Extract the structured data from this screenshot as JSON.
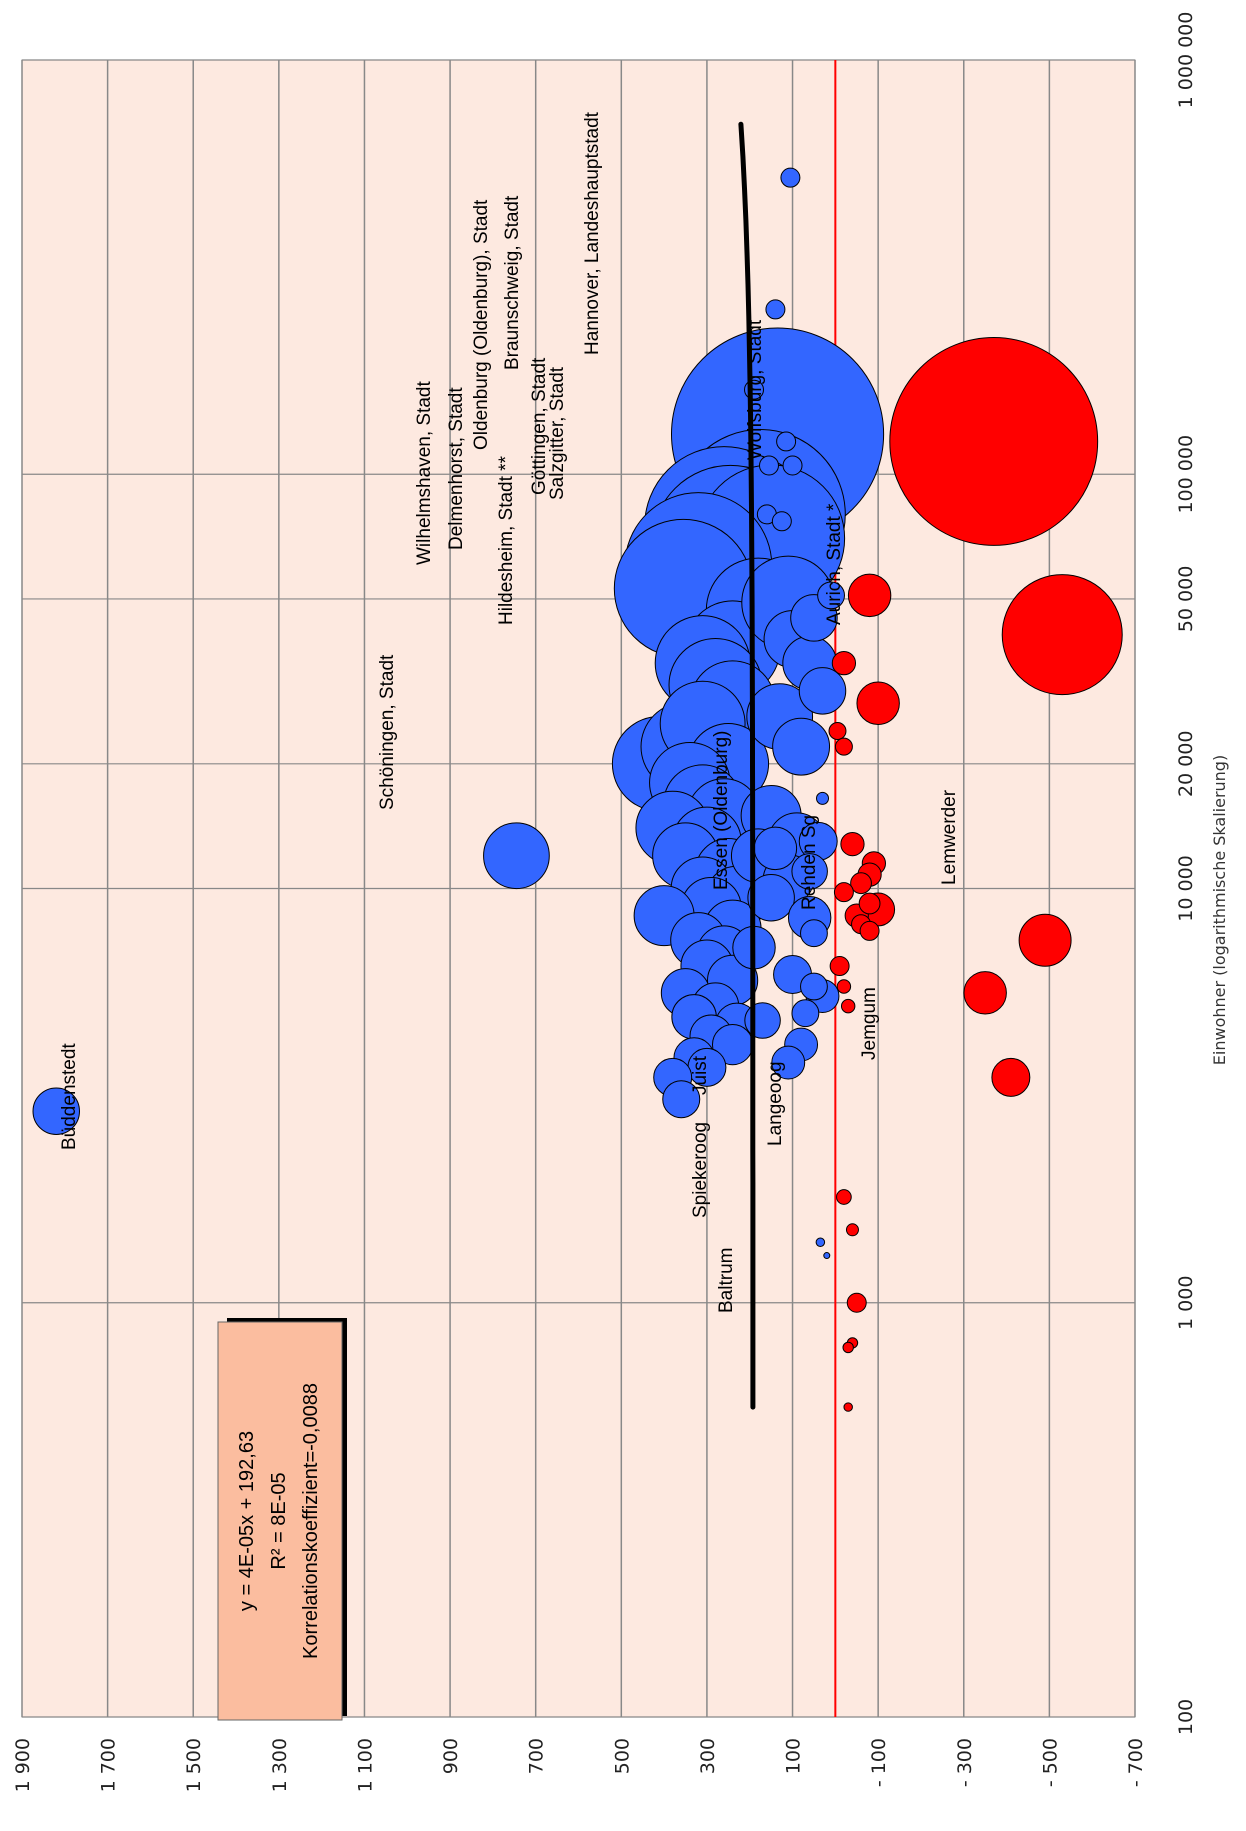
{
  "chart_data": {
    "type": "scatter",
    "subtype": "bubble",
    "orientation": "rotated-90-ccw",
    "xlabel": "Einwohner (logarithmische Skalierung)",
    "ylabel": "",
    "x_scale": "log",
    "xlim": [
      100,
      1000000
    ],
    "x_ticks": [
      100,
      1000,
      10000,
      20000,
      50000,
      100000,
      1000000
    ],
    "x_tick_labels": [
      "100",
      "1 000",
      "10 000",
      "20 000",
      "50 000",
      "100 000",
      "1 000 000"
    ],
    "ylim": [
      -700,
      1900
    ],
    "y_ticks": [
      -700,
      -500,
      -300,
      -100,
      100,
      300,
      500,
      700,
      900,
      1100,
      1300,
      1500,
      1700,
      1900
    ],
    "y_tick_labels": [
      "- 700",
      "- 500",
      "- 300",
      "- 100",
      "100",
      "300",
      "500",
      "700",
      "900",
      "1 100",
      "1 300",
      "1 500",
      "1 700",
      "1 900"
    ],
    "grid": true,
    "reference_line": {
      "y": 0,
      "color": "#ff0000"
    },
    "colors": {
      "plot_background": "#fde9e0",
      "positive": "#3366ff",
      "negative": "#ff0000",
      "trendline": "#000000",
      "equation_box": "#fbbd9f"
    },
    "trendline": {
      "type": "linear",
      "x_range": [
        560,
        700000
      ],
      "slope": 4e-05,
      "intercept": 192.63
    },
    "equation_box": {
      "lines": [
        "y = 4E-05x + 192,63",
        "R² = 8E-05",
        "Korrelationskoeffizient=-0,0088"
      ]
    },
    "points": [
      {
        "x": 125000,
        "y": 135,
        "size": 125000
      },
      {
        "x": 80000,
        "y": 175,
        "size": 80000
      },
      {
        "x": 72000,
        "y": 225,
        "size": 72000
      },
      {
        "x": 68000,
        "y": 245,
        "size": 68000
      },
      {
        "x": 75000,
        "y": 260,
        "size": 70000
      },
      {
        "x": 70000,
        "y": 150,
        "size": 60000
      },
      {
        "x": 60000,
        "y": 320,
        "size": 60000
      },
      {
        "x": 53000,
        "y": 355,
        "size": 53000
      },
      {
        "x": 47000,
        "y": 180,
        "size": 30000
      },
      {
        "x": 38000,
        "y": 240,
        "size": 25000
      },
      {
        "x": 35000,
        "y": 310,
        "size": 25000
      },
      {
        "x": 31000,
        "y": 280,
        "size": 24000
      },
      {
        "x": 28000,
        "y": 240,
        "size": 20000
      },
      {
        "x": 25000,
        "y": 310,
        "size": 20000
      },
      {
        "x": 22000,
        "y": 350,
        "size": 22000
      },
      {
        "x": 20000,
        "y": 410,
        "size": 25000
      },
      {
        "x": 20000,
        "y": 250,
        "size": 18000
      },
      {
        "x": 18000,
        "y": 340,
        "size": 18000
      },
      {
        "x": 16000,
        "y": 310,
        "size": 17000
      },
      {
        "x": 15000,
        "y": 260,
        "size": 15000
      },
      {
        "x": 14000,
        "y": 380,
        "size": 15000
      },
      {
        "x": 13000,
        "y": 300,
        "size": 13000
      },
      {
        "x": 12000,
        "y": 350,
        "size": 12000
      },
      {
        "x": 11000,
        "y": 250,
        "size": 12000
      },
      {
        "x": 10000,
        "y": 310,
        "size": 11000
      },
      {
        "x": 9500,
        "y": 230,
        "size": 11000
      },
      {
        "x": 9000,
        "y": 290,
        "size": 10000
      },
      {
        "x": 8600,
        "y": 400,
        "size": 10000
      },
      {
        "x": 8000,
        "y": 240,
        "size": 9000
      },
      {
        "x": 7500,
        "y": 320,
        "size": 8500
      },
      {
        "x": 7000,
        "y": 260,
        "size": 8000
      },
      {
        "x": 6500,
        "y": 300,
        "size": 7500
      },
      {
        "x": 6000,
        "y": 240,
        "size": 7000
      },
      {
        "x": 5600,
        "y": 350,
        "size": 6500
      },
      {
        "x": 5200,
        "y": 280,
        "size": 6000
      },
      {
        "x": 4900,
        "y": 330,
        "size": 5500
      },
      {
        "x": 4700,
        "y": 230,
        "size": 5000
      },
      {
        "x": 4400,
        "y": 290,
        "size": 5000
      },
      {
        "x": 4200,
        "y": 240,
        "size": 4500
      },
      {
        "x": 3900,
        "y": 330,
        "size": 4500
      },
      {
        "x": 3700,
        "y": 300,
        "size": 4000
      },
      {
        "x": 3500,
        "y": 380,
        "size": 4000
      },
      {
        "x": 3100,
        "y": 360,
        "size": 3800
      },
      {
        "x": 15000,
        "y": 150,
        "size": 10000
      },
      {
        "x": 13000,
        "y": 90,
        "size": 9000
      },
      {
        "x": 12000,
        "y": 180,
        "size": 8000
      },
      {
        "x": 10500,
        "y": 110,
        "size": 7000
      },
      {
        "x": 9500,
        "y": 150,
        "size": 6000
      },
      {
        "x": 8500,
        "y": 60,
        "size": 5000
      },
      {
        "x": 7200,
        "y": 190,
        "size": 5000
      },
      {
        "x": 6200,
        "y": 100,
        "size": 4000
      },
      {
        "x": 5500,
        "y": 30,
        "size": 3000
      },
      {
        "x": 4800,
        "y": 170,
        "size": 3500
      },
      {
        "x": 4200,
        "y": 80,
        "size": 3000
      },
      {
        "x": 3800,
        "y": 110,
        "size": 3000
      },
      {
        "x": 26000,
        "y": 130,
        "size": 12000
      },
      {
        "x": 22000,
        "y": 80,
        "size": 9000
      },
      {
        "x": 35000,
        "y": 60,
        "size": 8000
      },
      {
        "x": 45000,
        "y": 50,
        "size": 6000
      },
      {
        "x": 40000,
        "y": 100,
        "size": 9000
      },
      {
        "x": 30000,
        "y": 30,
        "size": 6000
      },
      {
        "x": 51000,
        "y": 10,
        "size": 2000
      },
      {
        "x": 5000,
        "y": 70,
        "size": 2000
      },
      {
        "x": 5800,
        "y": 50,
        "size": 2000
      },
      {
        "x": 7800,
        "y": 50,
        "size": 2000
      },
      {
        "x": 13000,
        "y": 40,
        "size": 4000
      },
      {
        "x": 11000,
        "y": 60,
        "size": 3500
      },
      {
        "x": 12500,
        "y": 140,
        "size": 5000
      },
      {
        "x": 1300,
        "y": 20,
        "size": 100
      },
      {
        "x": 2900,
        "y": 1820,
        "size": 6000,
        "label": "Büddenstedt"
      },
      {
        "x": 12000,
        "y": 745,
        "size": 12000,
        "label": "Schöningen, Stadt"
      },
      {
        "x": 49000,
        "y": 110,
        "size": 24000
      },
      {
        "x": 80000,
        "y": 160,
        "size": 1000,
        "label": "Wilhelmshaven, Stadt"
      },
      {
        "x": 77000,
        "y": 125,
        "size": 1000,
        "label": "Delmenhorst, Stadt"
      },
      {
        "x": 105000,
        "y": 155,
        "size": 1000,
        "label": "Hildesheim, Stadt **"
      },
      {
        "x": 160000,
        "y": 190,
        "size": 1000,
        "label": "Oldenburg (Oldenburg), Stadt"
      },
      {
        "x": 250000,
        "y": 140,
        "size": 1000,
        "label": "Braunschweig, Stadt"
      },
      {
        "x": 120000,
        "y": 115,
        "size": 1000,
        "label": "Göttingen, Stadt"
      },
      {
        "x": 105000,
        "y": 100,
        "size": 1000,
        "label": "Salzgitter, Stadt"
      },
      {
        "x": 520000,
        "y": 105,
        "size": 1000,
        "label": "Hannover, Landeshauptstadt"
      },
      {
        "x": 120000,
        "y": -370,
        "size": 120000,
        "label": "Wolfsburg, Stadt"
      },
      {
        "x": 41000,
        "y": -530,
        "size": 40000,
        "label": "Aurich, Stadt *"
      },
      {
        "x": 51000,
        "y": -80,
        "size": 5000
      },
      {
        "x": 28000,
        "y": -100,
        "size": 5000
      },
      {
        "x": 35000,
        "y": -20,
        "size": 1500
      },
      {
        "x": 24000,
        "y": -5,
        "size": 800
      },
      {
        "x": 22000,
        "y": -20,
        "size": 800
      },
      {
        "x": 16500,
        "y": 30,
        "size": 400
      },
      {
        "x": 12800,
        "y": -40,
        "size": 1500
      },
      {
        "x": 11500,
        "y": -90,
        "size": 1500
      },
      {
        "x": 10800,
        "y": -80,
        "size": 1500
      },
      {
        "x": 10300,
        "y": -60,
        "size": 1200
      },
      {
        "x": 9800,
        "y": -20,
        "size": 1000
      },
      {
        "x": 9200,
        "y": -80,
        "size": 1200
      },
      {
        "x": 8900,
        "y": -100,
        "size": 3000
      },
      {
        "x": 8600,
        "y": -50,
        "size": 1500
      },
      {
        "x": 8200,
        "y": -60,
        "size": 1000
      },
      {
        "x": 7900,
        "y": -80,
        "size": 1000
      },
      {
        "x": 5800,
        "y": -20,
        "size": 500
      },
      {
        "x": 5200,
        "y": -30,
        "size": 500
      },
      {
        "x": 7500,
        "y": -490,
        "size": 7500,
        "label": "Lemwerder"
      },
      {
        "x": 5600,
        "y": -350,
        "size": 5000,
        "label": "Rehden Sg"
      },
      {
        "x": 3500,
        "y": -410,
        "size": 4000,
        "label": "Jemgum"
      },
      {
        "x": 1800,
        "y": -20,
        "size": 600
      },
      {
        "x": 1500,
        "y": -40,
        "size": 400
      },
      {
        "x": 800,
        "y": -40,
        "size": 300
      },
      {
        "x": 560,
        "y": -30,
        "size": 200,
        "label": "Baltrum"
      },
      {
        "x": 780,
        "y": -30,
        "size": 300,
        "label": "Spiekeroog"
      },
      {
        "x": 1000,
        "y": -50,
        "size": 1000,
        "label": "Langeoog"
      },
      {
        "x": 1400,
        "y": 35,
        "size": 200,
        "label": "Juist"
      },
      {
        "x": 6500,
        "y": -10,
        "size": 1000,
        "label": "Essen (Oldenburg)"
      }
    ]
  }
}
